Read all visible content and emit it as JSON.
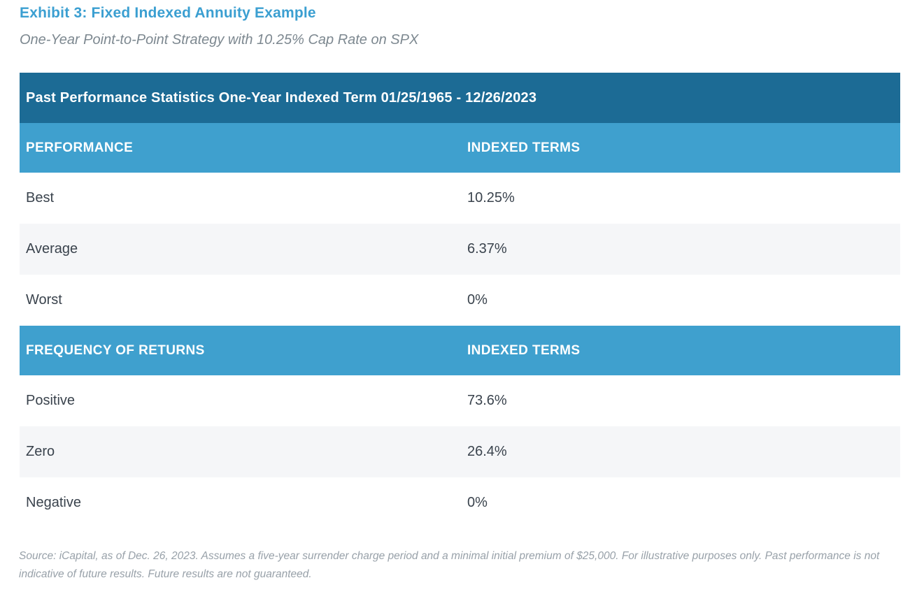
{
  "page": {
    "title": "Exhibit 3: Fixed Indexed Annuity Example",
    "subtitle": "One-Year Point-to-Point Strategy with 10.25% Cap Rate on SPX"
  },
  "table": {
    "main_header": "Past Performance Statistics One-Year Indexed Term 01/25/1965 - 12/26/2023",
    "sections": [
      {
        "col1_header": "PERFORMANCE",
        "col2_header": "INDEXED TERMS",
        "rows": [
          {
            "label": "Best",
            "value": "10.25%"
          },
          {
            "label": "Average",
            "value": "6.37%"
          },
          {
            "label": "Worst",
            "value": "0%"
          }
        ]
      },
      {
        "col1_header": "FREQUENCY OF RETURNS",
        "col2_header": "INDEXED TERMS",
        "rows": [
          {
            "label": "Positive",
            "value": "73.6%"
          },
          {
            "label": "Zero",
            "value": "26.4%"
          },
          {
            "label": "Negative",
            "value": "0%"
          }
        ]
      }
    ]
  },
  "footnote": "Source: iCapital, as of Dec. 26, 2023. Assumes a five-year surrender charge period and a minimal initial premium of $25,000. For illustrative purposes only. Past performance is not indicative of future results. Future results are not guaranteed.",
  "colors": {
    "title_blue": "#3b9fd1",
    "header_dark_blue": "#1c6b95",
    "header_light_blue": "#3fa0ce",
    "row_text": "#3a434d",
    "alt_row_bg": "#f5f6f8",
    "footnote_gray": "#98a1a9"
  }
}
